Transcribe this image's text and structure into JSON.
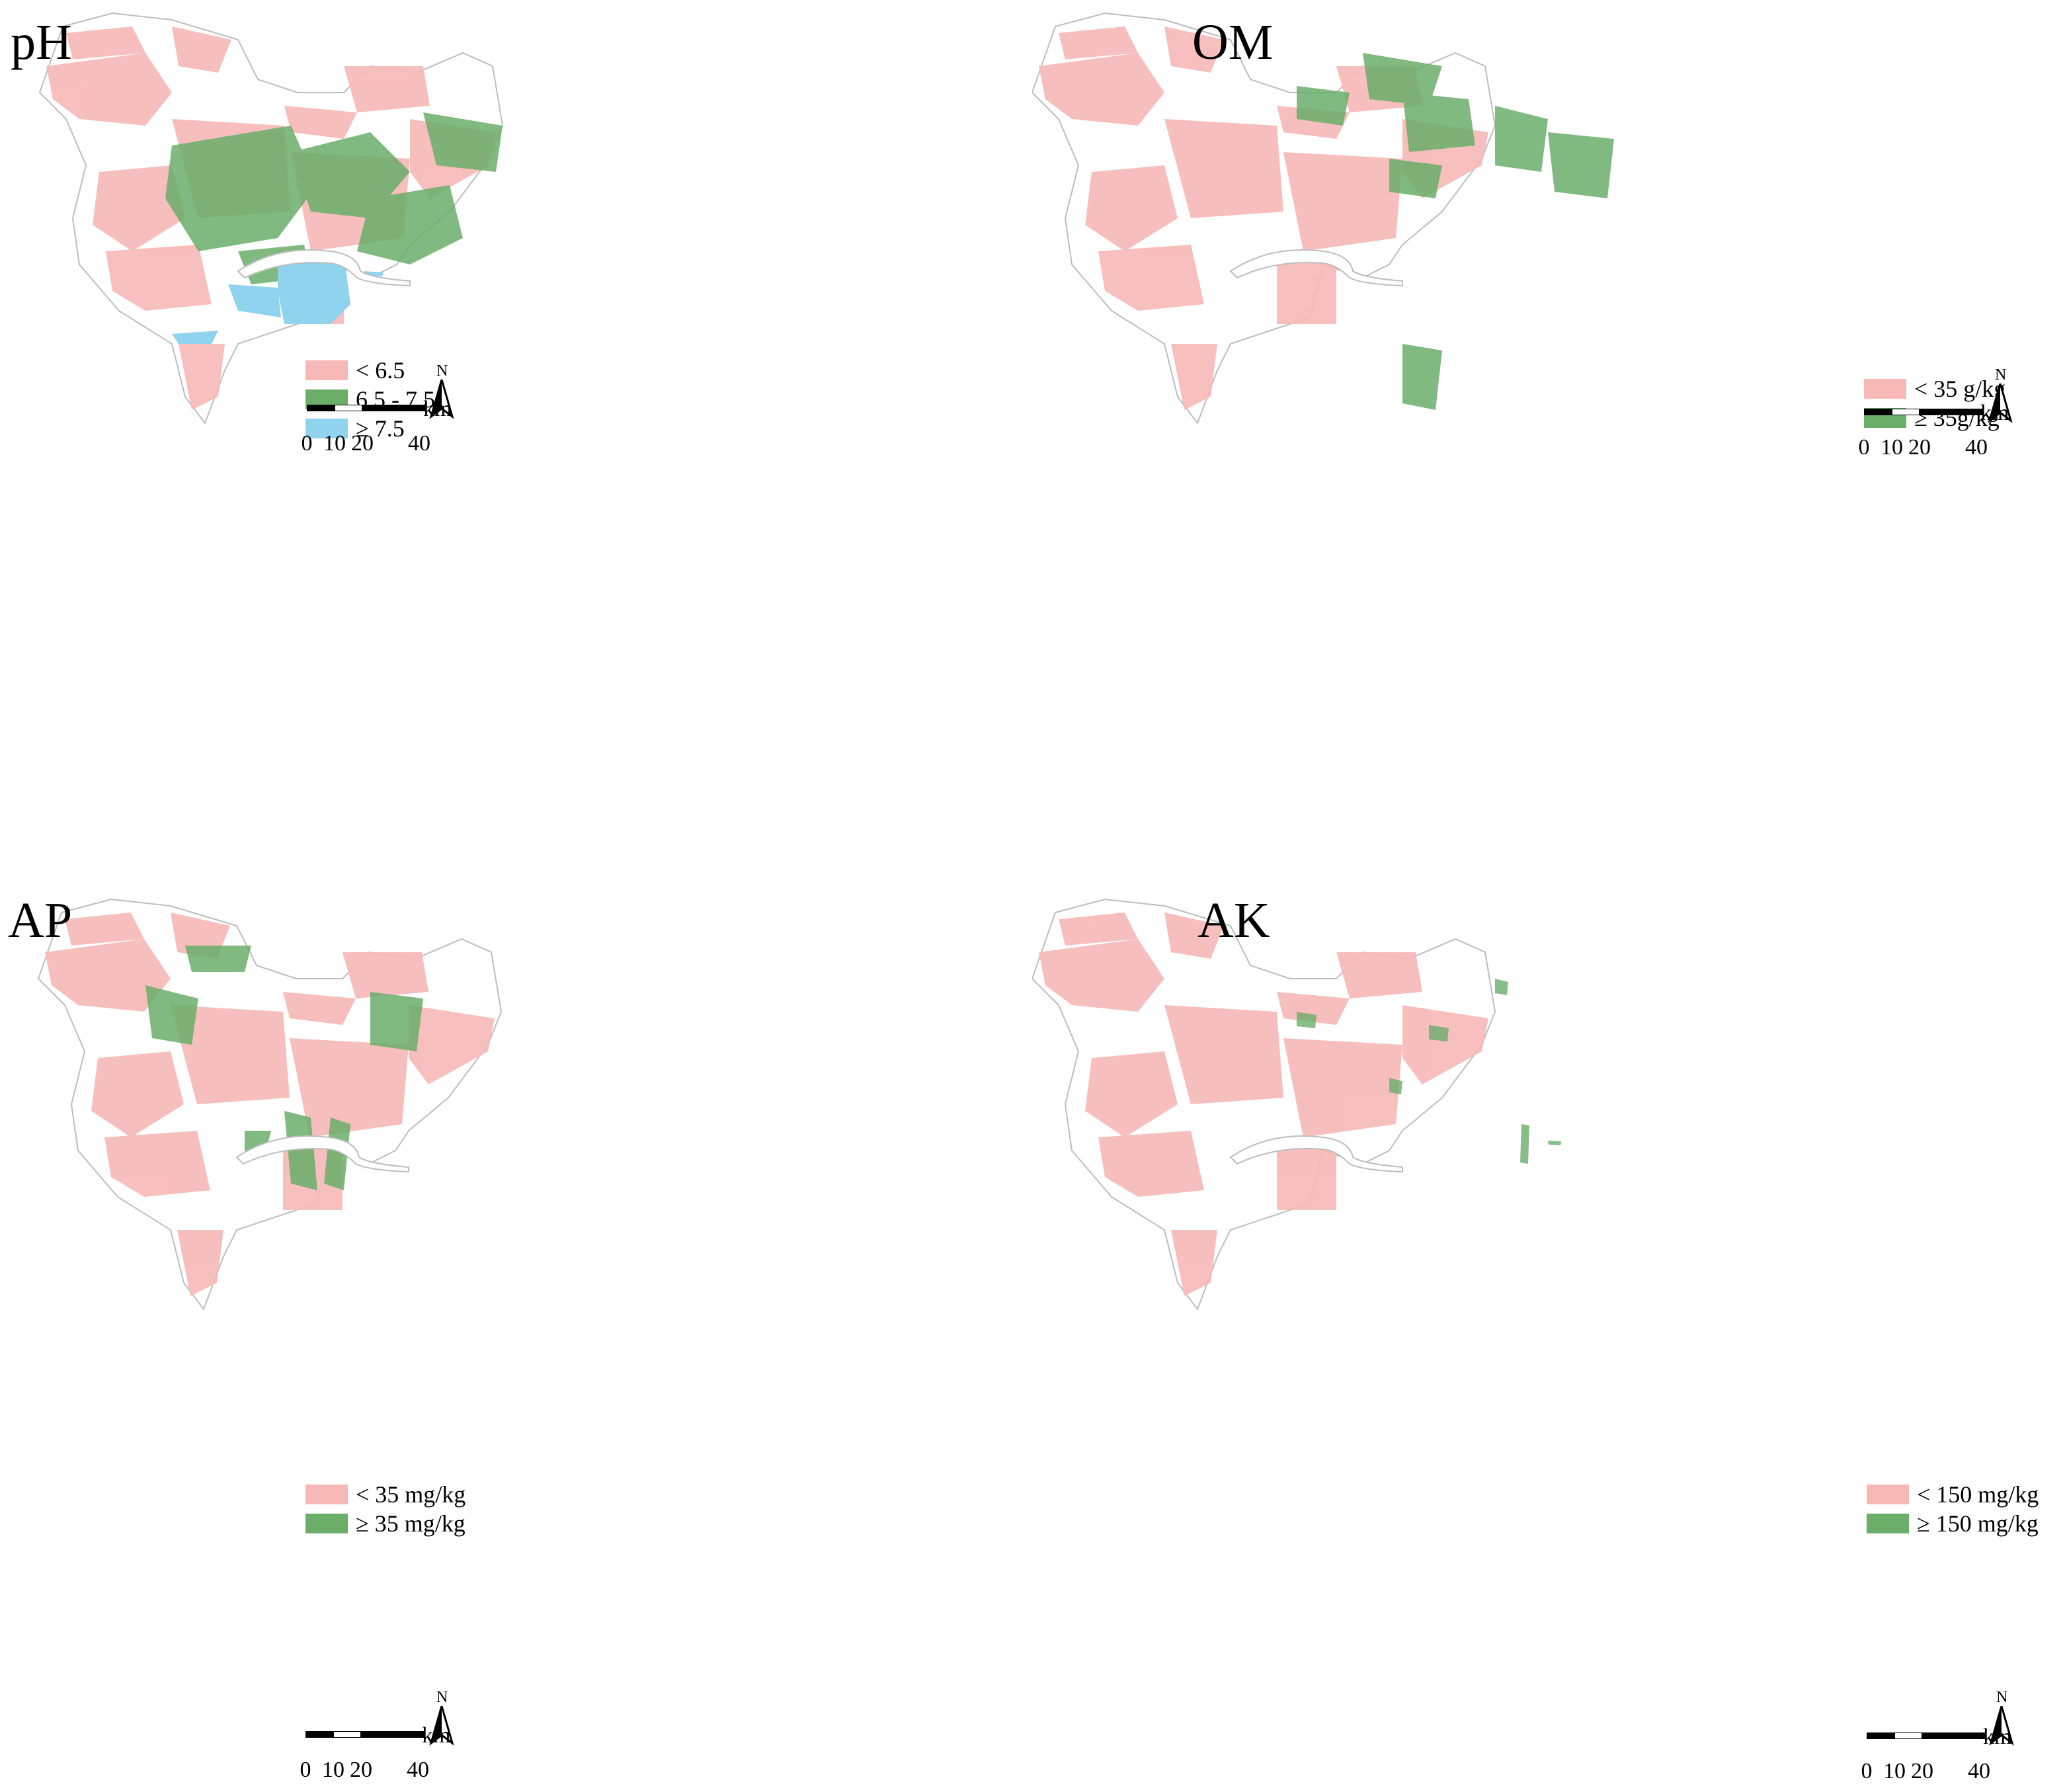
{
  "colors": {
    "pink": "#f7b8b8",
    "green": "#6aae6a",
    "blue": "#8fd3ee",
    "outline": "#bdbdbd"
  },
  "scale": {
    "unit": "km",
    "ticks": [
      "0",
      "10",
      "20",
      "40"
    ]
  },
  "north_label": "N",
  "panels": [
    {
      "title": "pH",
      "legend": [
        {
          "label": "< 6.5",
          "color": "pink"
        },
        {
          "label": "6.5 - 7.5",
          "color": "green"
        },
        {
          "label": "≥ 7.5",
          "color": "blue"
        }
      ]
    },
    {
      "title": "OM",
      "legend": [
        {
          "label": "< 35 g/kg",
          "color": "pink"
        },
        {
          "label": "≥ 35g/kg",
          "color": "green"
        }
      ]
    },
    {
      "title": "AP",
      "legend": [
        {
          "label": "< 35 mg/kg",
          "color": "pink"
        },
        {
          "label": "≥ 35 mg/kg",
          "color": "green"
        }
      ]
    },
    {
      "title": "AK",
      "legend": [
        {
          "label": "< 150 mg/kg",
          "color": "pink"
        },
        {
          "label": "≥ 150 mg/kg",
          "color": "green"
        }
      ]
    }
  ]
}
